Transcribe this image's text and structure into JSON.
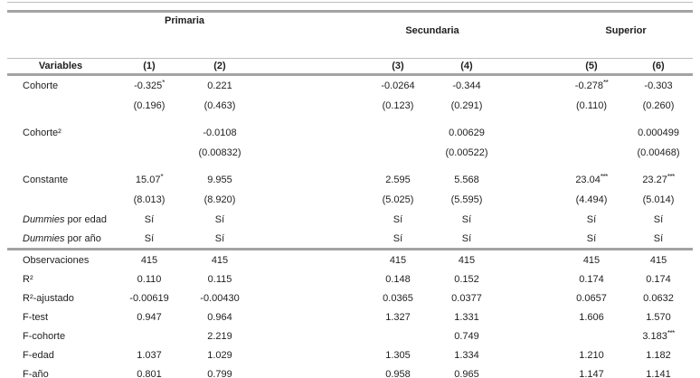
{
  "colors": {
    "rule": "#a3a3a3",
    "rule_light": "#bdbdbd",
    "text": "#1e1e1e"
  },
  "table": {
    "group_headers": [
      {
        "label": "Primaria"
      },
      {
        "label": "Secundaria"
      },
      {
        "label": "Superior"
      }
    ],
    "column_header_row": {
      "label": "Variables",
      "columns": [
        "(1)",
        "(2)",
        "(3)",
        "(4)",
        "(5)",
        "(6)"
      ]
    },
    "coefficient_rows": [
      {
        "label": "Cohorte",
        "values": [
          "-0.325*",
          "0.221",
          "-0.0264",
          "-0.344",
          "-0.278**",
          "-0.303"
        ],
        "se": [
          "(0.196)",
          "(0.463)",
          "(0.123)",
          "(0.291)",
          "(0.110)",
          "(0.260)"
        ]
      },
      {
        "label": "Cohorte²",
        "values": [
          "",
          "-0.0108",
          "",
          "0.00629",
          "",
          "0.000499"
        ],
        "se": [
          "",
          "(0.00832)",
          "",
          "(0.00522)",
          "",
          "(0.00468)"
        ]
      },
      {
        "label": "Constante",
        "values": [
          "15.07*",
          "9.955",
          "2.595",
          "5.568",
          "23.04***",
          "23.27***"
        ],
        "se": [
          "(8.013)",
          "(8.920)",
          "(5.025)",
          "(5.595)",
          "(4.494)",
          "(5.014)"
        ]
      }
    ],
    "dummy_rows": [
      {
        "label_italic": "Dummies",
        "label_rest": " por edad",
        "values": [
          "Sí",
          "Sí",
          "Sí",
          "Sí",
          "Sí",
          "Sí"
        ]
      },
      {
        "label_italic": "Dummies",
        "label_rest": " por año",
        "values": [
          "Sí",
          "Sí",
          "Sí",
          "Sí",
          "Sí",
          "Sí"
        ]
      }
    ],
    "stat_rows": [
      {
        "label": "Observaciones",
        "values": [
          "415",
          "415",
          "415",
          "415",
          "415",
          "415"
        ]
      },
      {
        "label": "R²",
        "values": [
          "0.110",
          "0.115",
          "0.148",
          "0.152",
          "0.174",
          "0.174"
        ]
      },
      {
        "label": "R²-ajustado",
        "values": [
          "-0.00619",
          "-0.00430",
          "0.0365",
          "0.0377",
          "0.0657",
          "0.0632"
        ]
      },
      {
        "label": "F-test",
        "values": [
          "0.947",
          "0.964",
          "1.327",
          "1.331",
          "1.606",
          "1.570"
        ]
      },
      {
        "label": "F-cohorte",
        "values": [
          "",
          "2.219",
          "",
          "0.749",
          "",
          "3.183***"
        ]
      },
      {
        "label": "F-edad",
        "values": [
          "1.037",
          "1.029",
          "1.305",
          "1.334",
          "1.210",
          "1.182"
        ]
      },
      {
        "label": "F-año",
        "values": [
          "0.801",
          "0.799",
          "0.958",
          "0.965",
          "1.147",
          "1.141"
        ]
      }
    ]
  }
}
